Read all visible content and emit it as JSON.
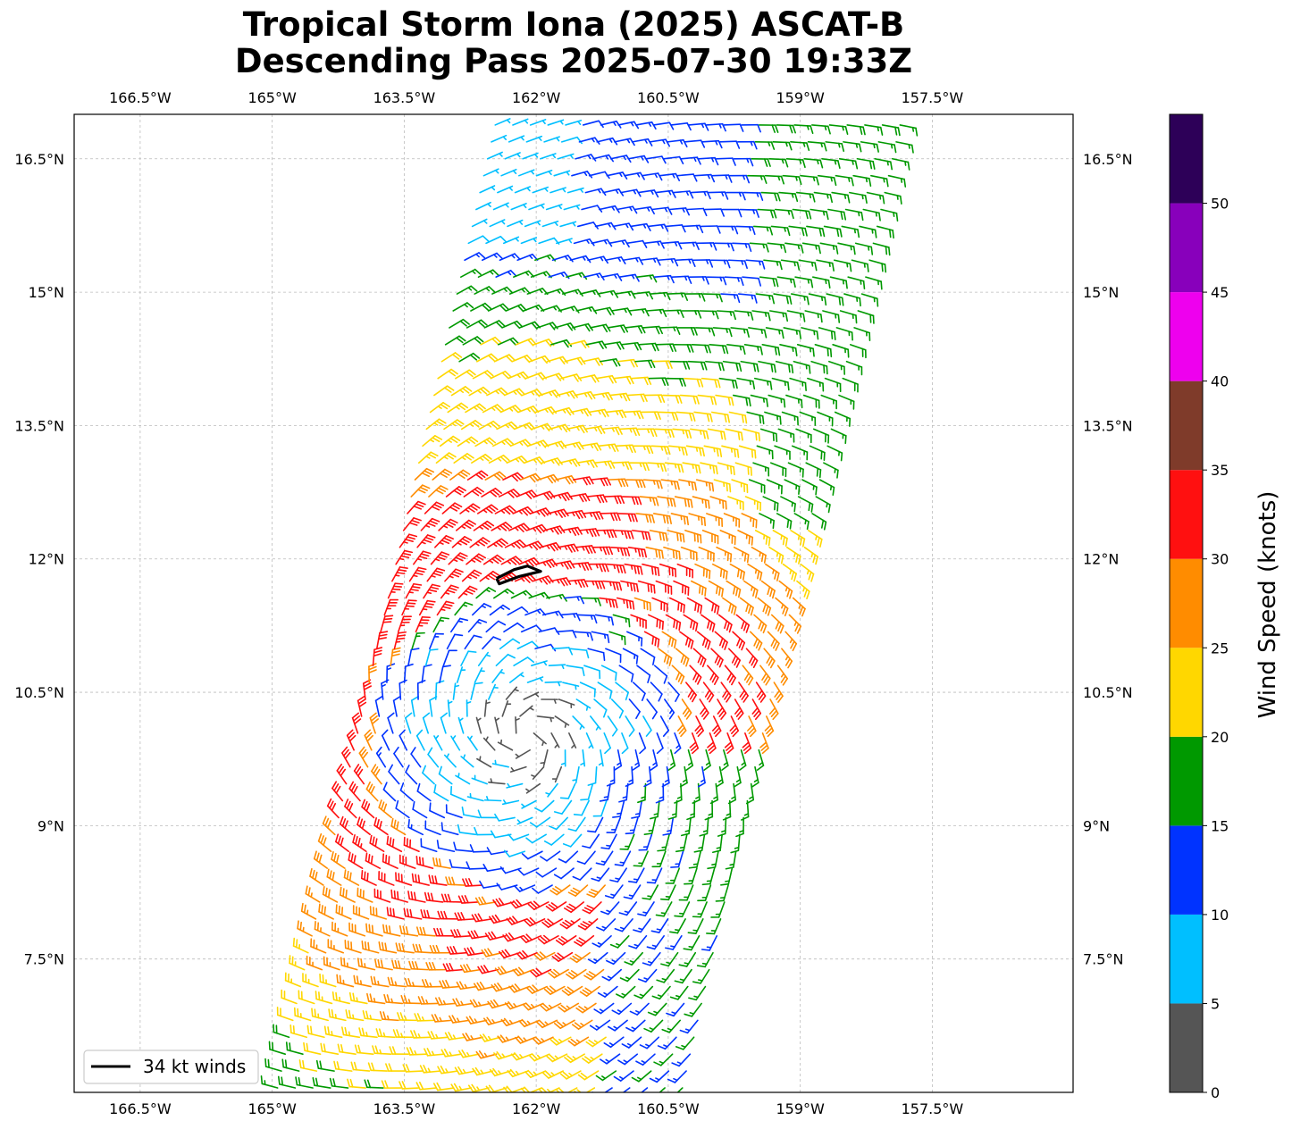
{
  "title": {
    "line1": "Tropical Storm Iona (2025) ASCAT-B",
    "line2": "Descending Pass 2025-07-30 19:33Z"
  },
  "map": {
    "lon_range": [
      -167.25,
      -155.9
    ],
    "lat_range": [
      6.0,
      17.0
    ],
    "lon_ticks": [
      {
        "value": -166.5,
        "label": "166.5°W"
      },
      {
        "value": -165.0,
        "label": "165°W"
      },
      {
        "value": -163.5,
        "label": "163.5°W"
      },
      {
        "value": -162.0,
        "label": "162°W"
      },
      {
        "value": -160.5,
        "label": "160.5°W"
      },
      {
        "value": -159.0,
        "label": "159°W"
      },
      {
        "value": -157.5,
        "label": "157.5°W"
      }
    ],
    "lat_ticks": [
      {
        "value": 16.5,
        "label": "16.5°N"
      },
      {
        "value": 15.0,
        "label": "15°N"
      },
      {
        "value": 13.5,
        "label": "13.5°N"
      },
      {
        "value": 12.0,
        "label": "12°N"
      },
      {
        "value": 10.5,
        "label": "10.5°N"
      },
      {
        "value": 9.0,
        "label": "9°N"
      },
      {
        "value": 7.5,
        "label": "7.5°N"
      }
    ],
    "gridlines": true,
    "storm_center": {
      "lon": -162.1,
      "lat": 10.0
    },
    "swath_edges": {
      "south": {
        "west_lon": -165.0,
        "east_lon": -160.3,
        "lat": 6.0
      },
      "north": {
        "west_lon": -162.5,
        "east_lon": -157.7,
        "lat": 16.95
      }
    },
    "wind_field": "cyclonic barbs, peak ~30-35 kt north of center",
    "contour_34kt": [
      {
        "lon": -162.45,
        "lat": 11.78
      },
      {
        "lon": -162.25,
        "lat": 11.88
      },
      {
        "lon": -162.1,
        "lat": 11.92
      },
      {
        "lon": -161.95,
        "lat": 11.86
      },
      {
        "lon": -162.2,
        "lat": 11.8
      },
      {
        "lon": -162.42,
        "lat": 11.72
      },
      {
        "lon": -162.45,
        "lat": 11.78
      }
    ]
  },
  "legend": {
    "label": "34 kt winds",
    "position": "lower-left",
    "line_color": "#000000"
  },
  "colorbar": {
    "label": "Wind Speed (knots)",
    "bins": [
      {
        "min": 0,
        "max": 5,
        "color": "#555555"
      },
      {
        "min": 5,
        "max": 10,
        "color": "#00BFFF"
      },
      {
        "min": 10,
        "max": 15,
        "color": "#0033FF"
      },
      {
        "min": 15,
        "max": 20,
        "color": "#009900"
      },
      {
        "min": 20,
        "max": 25,
        "color": "#FFD700"
      },
      {
        "min": 25,
        "max": 30,
        "color": "#FF8C00"
      },
      {
        "min": 30,
        "max": 35,
        "color": "#FF1010"
      },
      {
        "min": 35,
        "max": 40,
        "color": "#7F3B2A"
      },
      {
        "min": 40,
        "max": 45,
        "color": "#EE00EE"
      },
      {
        "min": 45,
        "max": 50,
        "color": "#8800BB"
      },
      {
        "min": 50,
        "max": 55,
        "color": "#2D0058"
      }
    ],
    "ticks": [
      {
        "value": 0,
        "label": "0"
      },
      {
        "value": 5,
        "label": "5"
      },
      {
        "value": 10,
        "label": "10"
      },
      {
        "value": 15,
        "label": "15"
      },
      {
        "value": 20,
        "label": "20"
      },
      {
        "value": 25,
        "label": "25"
      },
      {
        "value": 30,
        "label": "30"
      },
      {
        "value": 35,
        "label": "35"
      },
      {
        "value": 40,
        "label": "40"
      },
      {
        "value": 45,
        "label": "45"
      },
      {
        "value": 50,
        "label": "50"
      }
    ]
  }
}
